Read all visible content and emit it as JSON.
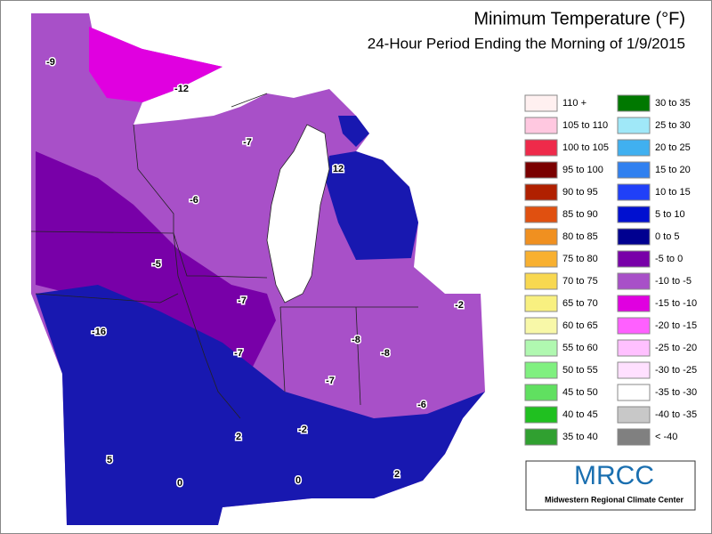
{
  "header": {
    "title": "Minimum Temperature (°F)",
    "subtitle": "24-Hour Period Ending the Morning of 1/9/2015"
  },
  "map_labels": [
    "-9",
    "-12",
    "-7",
    "12",
    "-6",
    "-5",
    "-7",
    "-16",
    "-7",
    "-8",
    "-8",
    "-7",
    "-2",
    "-6",
    "2",
    "-2",
    "5",
    "0",
    "0",
    "2"
  ],
  "legend": {
    "left": [
      {
        "label": "110 +",
        "color": "#fff0f0"
      },
      {
        "label": "105 to 110",
        "color": "#ffc8e0"
      },
      {
        "label": "100 to 105",
        "color": "#ee2a4a"
      },
      {
        "label": "95 to 100",
        "color": "#7a0000"
      },
      {
        "label": "90 to 95",
        "color": "#b02000"
      },
      {
        "label": "85 to 90",
        "color": "#e05010"
      },
      {
        "label": "80 to 85",
        "color": "#f09020"
      },
      {
        "label": "75 to 80",
        "color": "#f8b030"
      },
      {
        "label": "70 to 75",
        "color": "#f8d850"
      },
      {
        "label": "65 to 70",
        "color": "#f8f080"
      },
      {
        "label": "60 to 65",
        "color": "#f8f8a8"
      },
      {
        "label": "55 to 60",
        "color": "#b0f8b0"
      },
      {
        "label": "50 to 55",
        "color": "#80f080"
      },
      {
        "label": "45 to 50",
        "color": "#60e060"
      },
      {
        "label": "40 to 45",
        "color": "#20c020"
      },
      {
        "label": "35 to 40",
        "color": "#30a030"
      }
    ],
    "right": [
      {
        "label": "30 to 35",
        "color": "#007800"
      },
      {
        "label": "25 to 30",
        "color": "#a0e8f8"
      },
      {
        "label": "20 to 25",
        "color": "#40b0f0"
      },
      {
        "label": "15 to 20",
        "color": "#3080f0"
      },
      {
        "label": "10 to 15",
        "color": "#2040f8"
      },
      {
        "label": "5 to 10",
        "color": "#0010d0"
      },
      {
        "label": "0 to 5",
        "color": "#000090"
      },
      {
        "label": "-5 to 0",
        "color": "#7800a8"
      },
      {
        "label": "-10 to -5",
        "color": "#a850c8"
      },
      {
        "label": "-15 to -10",
        "color": "#e000e0"
      },
      {
        "label": "-20 to -15",
        "color": "#ff60ff"
      },
      {
        "label": "-25 to -20",
        "color": "#ffc0ff"
      },
      {
        "label": "-30 to -25",
        "color": "#ffe0ff"
      },
      {
        "label": "-35 to -30",
        "color": "#ffffff"
      },
      {
        "label": "-40 to -35",
        "color": "#c8c8c8"
      },
      {
        "label": "< -40",
        "color": "#808080"
      }
    ]
  },
  "logo": {
    "name": "MRCC",
    "caption": "Midwestern Regional Climate Center"
  }
}
